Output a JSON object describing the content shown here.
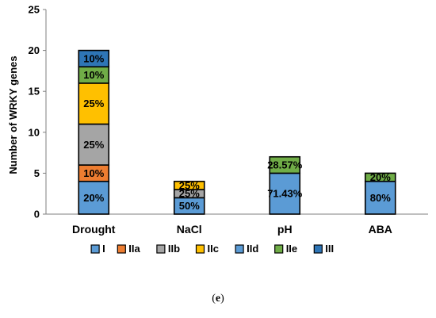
{
  "chart_data": {
    "type": "bar",
    "stacked": true,
    "ylabel": "Number of WRKY genes",
    "ylim": [
      0,
      25
    ],
    "yticks": [
      0,
      5,
      10,
      15,
      20,
      25
    ],
    "grid": false,
    "legend_position": "bottom",
    "categories": [
      "Drought",
      "NaCl",
      "pH",
      "ABA"
    ],
    "series": [
      {
        "name": "I",
        "color": "#5b9bd5",
        "values": [
          4,
          2,
          0,
          0
        ],
        "labels": [
          "20%",
          "50%",
          "",
          ""
        ]
      },
      {
        "name": "IIa",
        "color": "#ed7d31",
        "values": [
          2,
          0,
          0,
          0
        ],
        "labels": [
          "10%",
          "",
          "",
          ""
        ]
      },
      {
        "name": "IIb",
        "color": "#a5a5a5",
        "values": [
          5,
          1,
          0,
          0
        ],
        "labels": [
          "25%",
          "25%",
          "",
          ""
        ]
      },
      {
        "name": "IIc",
        "color": "#ffc000",
        "values": [
          5,
          1,
          0,
          0
        ],
        "labels": [
          "25%",
          "25%",
          "",
          ""
        ]
      },
      {
        "name": "IId",
        "color": "#5b9bd5",
        "values": [
          0,
          0,
          5,
          4
        ],
        "labels": [
          "",
          "",
          "71.43%",
          "80%"
        ]
      },
      {
        "name": "IIe",
        "color": "#70ad47",
        "values": [
          2,
          0,
          2,
          1
        ],
        "labels": [
          "10%",
          "",
          "28.57%",
          "20%"
        ]
      },
      {
        "name": "III",
        "color": "#2e75b6",
        "values": [
          2,
          0,
          0,
          0
        ],
        "labels": [
          "10%",
          "",
          "",
          ""
        ]
      }
    ]
  },
  "caption": {
    "prefix": "(",
    "letter": "e",
    "suffix": ")"
  }
}
